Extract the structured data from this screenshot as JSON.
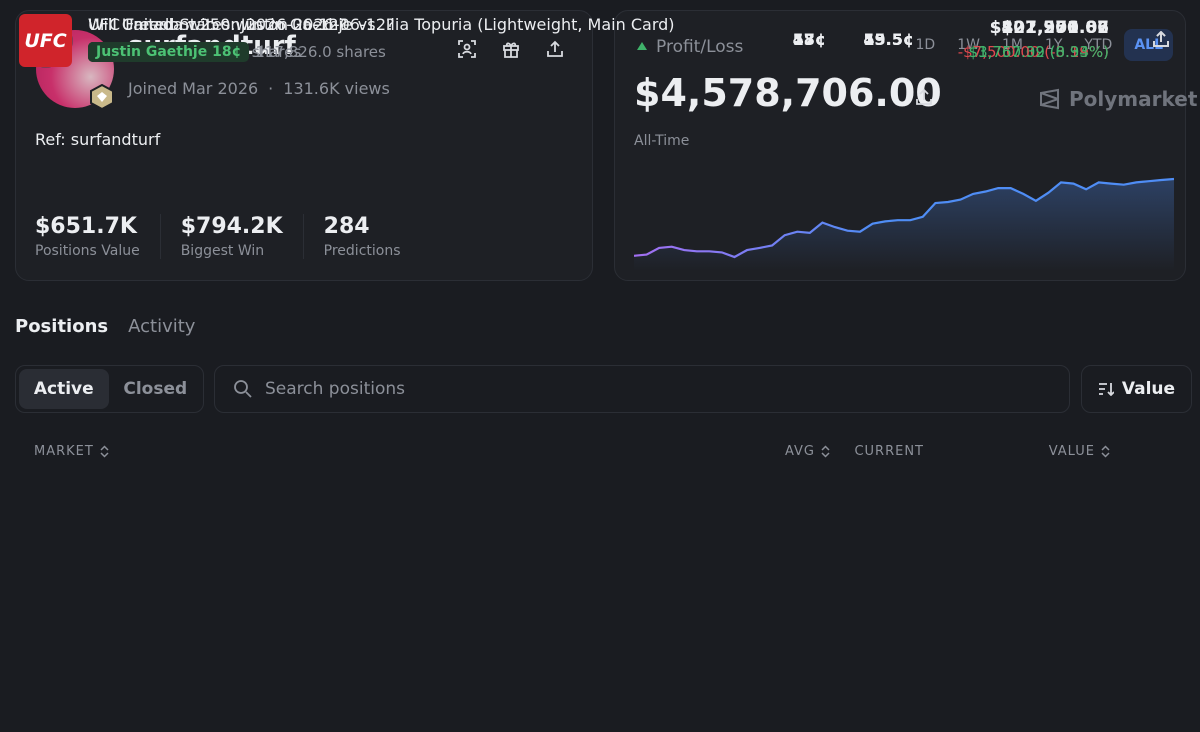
{
  "profile": {
    "username": "surfandturf",
    "joined": "Joined Mar 2026",
    "views": "131.6K views",
    "ref": "Ref: surfandturf",
    "stats": [
      {
        "value": "$651.7K",
        "label": "Positions Value"
      },
      {
        "value": "$794.2K",
        "label": "Biggest Win"
      },
      {
        "value": "284",
        "label": "Predictions"
      }
    ]
  },
  "pnl": {
    "label": "Profit/Loss",
    "ranges": [
      "1D",
      "1W",
      "1M",
      "1Y",
      "YTD",
      "ALL"
    ],
    "active_range": 5,
    "amount": "$4,578,706.00",
    "brand": "Polymarket",
    "period": "All-Time",
    "chart": {
      "type": "line",
      "color_start": "#a36ff2",
      "color": "#4f8df5",
      "values": [
        0.07,
        0.14,
        0.54,
        0.61,
        0.41,
        0.34,
        0.34,
        0.27,
        0,
        0.41,
        0.54,
        0.68,
        1.29,
        1.5,
        1.43,
        2.04,
        1.77,
        1.56,
        1.5,
        1.97,
        2.11,
        2.18,
        2.18,
        2.38,
        3.2,
        3.26,
        3.4,
        3.74,
        3.88,
        4.08,
        4.08,
        3.74,
        3.33,
        3.81,
        4.42,
        4.35,
        4.01,
        4.42,
        4.35,
        4.28,
        4.42,
        4.49,
        4.56,
        4.62
      ]
    }
  },
  "tabs": [
    "Positions",
    "Activity"
  ],
  "active_tab": 0,
  "filters": [
    "Active",
    "Closed"
  ],
  "active_filter": 0,
  "search_placeholder": "Search positions",
  "sort": "Value",
  "table": {
    "headers": [
      {
        "label": "MARKET",
        "sortable": true
      },
      {
        "label": "AVG",
        "sortable": true
      },
      {
        "label": "CURRENT",
        "sortable": false
      },
      {
        "label": "VALUE",
        "sortable": true
      }
    ],
    "rows": [
      {
        "icon": "ball",
        "title": "Will Canada win on 2026-06-12?",
        "outcome": "Yes 53¢",
        "shares": "750,003.4 shares",
        "avg": "53¢",
        "current": "53.5¢",
        "value": "$401,251.82",
        "pnl": "$3,750.02 (0.94%)"
      },
      {
        "icon": "ball",
        "title": "Will United States win on 2026-06-12?",
        "outcome": "Yes 47¢",
        "shares": "500,000.1 shares",
        "avg": "47¢",
        "current": "45.5¢",
        "value": "$227,500.06",
        "pnl": "-$7,500.00 (-3.19%)"
      },
      {
        "icon": "ufc",
        "logo_text": "UFC",
        "title": "UFC Freedom 250: Justin Gaethje vs. Ilia Topuria (Lightweight, Main Card)",
        "outcome": "Justin Gaethje 18¢",
        "shares": "117,826.0 shares",
        "avg": "18¢",
        "current": "19.5¢",
        "value": "$22,976.07",
        "pnl": "$1,767.39 (8.33%)"
      }
    ]
  }
}
